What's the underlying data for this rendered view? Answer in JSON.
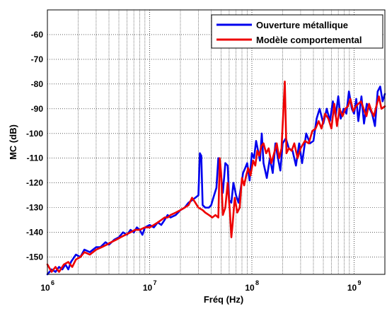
{
  "chart_data": {
    "type": "line",
    "title": "",
    "xlabel": "Fréq (Hz)",
    "ylabel": "MC (dB)",
    "xscale": "log",
    "xlim": [
      1000000,
      2000000000
    ],
    "ylim": [
      -157,
      -50
    ],
    "yticks": [
      -60,
      -70,
      -80,
      -90,
      -100,
      -110,
      -120,
      -130,
      -140,
      -150
    ],
    "xticks": [
      {
        "value": 1000000,
        "label": "10",
        "exp": "6"
      },
      {
        "value": 10000000,
        "label": "10",
        "exp": "7"
      },
      {
        "value": 100000000,
        "label": "10",
        "exp": "8"
      },
      {
        "value": 1000000000,
        "label": "10",
        "exp": "9"
      }
    ],
    "grid": true,
    "legend": "top-right",
    "series": [
      {
        "name": "Ouverture métallique",
        "color": "#0000ee",
        "points": [
          [
            1000000,
            -157
          ],
          [
            1100000,
            -155
          ],
          [
            1200000,
            -156
          ],
          [
            1300000,
            -154
          ],
          [
            1400000,
            -155
          ],
          [
            1500000,
            -153
          ],
          [
            1600000,
            -155
          ],
          [
            1700000,
            -152
          ],
          [
            1900000,
            -149
          ],
          [
            2100000,
            -150
          ],
          [
            2300000,
            -147
          ],
          [
            2600000,
            -148
          ],
          [
            3000000,
            -146
          ],
          [
            3300000,
            -146
          ],
          [
            3700000,
            -144
          ],
          [
            4000000,
            -145
          ],
          [
            4500000,
            -143
          ],
          [
            5000000,
            -142
          ],
          [
            5500000,
            -140
          ],
          [
            6000000,
            -141
          ],
          [
            6500000,
            -139
          ],
          [
            7000000,
            -140
          ],
          [
            7500000,
            -138
          ],
          [
            8000000,
            -139
          ],
          [
            8500000,
            -141
          ],
          [
            9000000,
            -138
          ],
          [
            10000000,
            -137
          ],
          [
            11000000,
            -138
          ],
          [
            12000000,
            -136
          ],
          [
            13000000,
            -137
          ],
          [
            14000000,
            -135
          ],
          [
            15000000,
            -133
          ],
          [
            16000000,
            -134
          ],
          [
            18000000,
            -133
          ],
          [
            20000000,
            -131
          ],
          [
            22000000,
            -130
          ],
          [
            24000000,
            -128
          ],
          [
            26000000,
            -127
          ],
          [
            28000000,
            -126
          ],
          [
            30000000,
            -125
          ],
          [
            31000000,
            -108
          ],
          [
            32000000,
            -109
          ],
          [
            33000000,
            -129
          ],
          [
            35000000,
            -130
          ],
          [
            38000000,
            -130
          ],
          [
            40000000,
            -129
          ],
          [
            42000000,
            -126
          ],
          [
            45000000,
            -122
          ],
          [
            47000000,
            -110
          ],
          [
            49000000,
            -114
          ],
          [
            52000000,
            -124
          ],
          [
            55000000,
            -112
          ],
          [
            58000000,
            -113
          ],
          [
            60000000,
            -127
          ],
          [
            63000000,
            -128
          ],
          [
            66000000,
            -120
          ],
          [
            70000000,
            -125
          ],
          [
            74000000,
            -128
          ],
          [
            78000000,
            -122
          ],
          [
            82000000,
            -116
          ],
          [
            86000000,
            -114
          ],
          [
            90000000,
            -112
          ],
          [
            95000000,
            -119
          ],
          [
            100000000,
            -108
          ],
          [
            105000000,
            -110
          ],
          [
            110000000,
            -103
          ],
          [
            115000000,
            -107
          ],
          [
            120000000,
            -111
          ],
          [
            125000000,
            -100
          ],
          [
            130000000,
            -112
          ],
          [
            140000000,
            -118
          ],
          [
            150000000,
            -110
          ],
          [
            160000000,
            -116
          ],
          [
            170000000,
            -104
          ],
          [
            180000000,
            -110
          ],
          [
            190000000,
            -115
          ],
          [
            200000000,
            -104
          ],
          [
            215000000,
            -102
          ],
          [
            230000000,
            -106
          ],
          [
            250000000,
            -107
          ],
          [
            270000000,
            -113
          ],
          [
            290000000,
            -104
          ],
          [
            310000000,
            -112
          ],
          [
            340000000,
            -100
          ],
          [
            370000000,
            -104
          ],
          [
            400000000,
            -103
          ],
          [
            430000000,
            -94
          ],
          [
            460000000,
            -90
          ],
          [
            500000000,
            -96
          ],
          [
            540000000,
            -90
          ],
          [
            580000000,
            -95
          ],
          [
            620000000,
            -87
          ],
          [
            660000000,
            -93
          ],
          [
            700000000,
            -85
          ],
          [
            740000000,
            -94
          ],
          [
            790000000,
            -90
          ],
          [
            840000000,
            -92
          ],
          [
            890000000,
            -83
          ],
          [
            950000000,
            -90
          ],
          [
            1000000000,
            -92
          ],
          [
            1050000000,
            -86
          ],
          [
            1100000000,
            -95
          ],
          [
            1180000000,
            -85
          ],
          [
            1250000000,
            -96
          ],
          [
            1330000000,
            -88
          ],
          [
            1420000000,
            -90
          ],
          [
            1500000000,
            -92
          ],
          [
            1600000000,
            -97
          ],
          [
            1700000000,
            -83
          ],
          [
            1800000000,
            -81
          ],
          [
            1900000000,
            -87
          ],
          [
            2000000000,
            -84
          ]
        ]
      },
      {
        "name": "Modèle comportemental",
        "color": "#ee0000",
        "points": [
          [
            1000000,
            -153
          ],
          [
            1100000,
            -156
          ],
          [
            1200000,
            -154
          ],
          [
            1300000,
            -156
          ],
          [
            1450000,
            -153
          ],
          [
            1600000,
            -152
          ],
          [
            1750000,
            -154
          ],
          [
            1900000,
            -151
          ],
          [
            2100000,
            -150
          ],
          [
            2300000,
            -148
          ],
          [
            2600000,
            -149
          ],
          [
            3000000,
            -147
          ],
          [
            3400000,
            -146
          ],
          [
            3800000,
            -145
          ],
          [
            4200000,
            -144
          ],
          [
            4700000,
            -143
          ],
          [
            5200000,
            -142
          ],
          [
            5800000,
            -141
          ],
          [
            6500000,
            -140
          ],
          [
            7200000,
            -139
          ],
          [
            8000000,
            -139
          ],
          [
            9000000,
            -138
          ],
          [
            10000000,
            -138
          ],
          [
            11000000,
            -137
          ],
          [
            12000000,
            -136
          ],
          [
            13000000,
            -135
          ],
          [
            14000000,
            -134
          ],
          [
            15000000,
            -134
          ],
          [
            16000000,
            -133
          ],
          [
            18000000,
            -132
          ],
          [
            20000000,
            -131
          ],
          [
            22000000,
            -130
          ],
          [
            24000000,
            -129
          ],
          [
            26000000,
            -126
          ],
          [
            28000000,
            -128
          ],
          [
            30000000,
            -130
          ],
          [
            33000000,
            -131
          ],
          [
            35000000,
            -132
          ],
          [
            38000000,
            -133
          ],
          [
            41000000,
            -134
          ],
          [
            44000000,
            -133
          ],
          [
            47000000,
            -134
          ],
          [
            48500000,
            -110
          ],
          [
            50000000,
            -116
          ],
          [
            52000000,
            -133
          ],
          [
            55000000,
            -130
          ],
          [
            58000000,
            -120
          ],
          [
            61000000,
            -132
          ],
          [
            63000000,
            -142
          ],
          [
            65000000,
            -136
          ],
          [
            68000000,
            -126
          ],
          [
            72000000,
            -132
          ],
          [
            76000000,
            -130
          ],
          [
            80000000,
            -118
          ],
          [
            84000000,
            -121
          ],
          [
            88000000,
            -117
          ],
          [
            92000000,
            -114
          ],
          [
            97000000,
            -117
          ],
          [
            103000000,
            -111
          ],
          [
            108000000,
            -113
          ],
          [
            113000000,
            -107
          ],
          [
            118000000,
            -109
          ],
          [
            124000000,
            -105
          ],
          [
            130000000,
            -104
          ],
          [
            138000000,
            -108
          ],
          [
            146000000,
            -106
          ],
          [
            155000000,
            -112
          ],
          [
            165000000,
            -108
          ],
          [
            175000000,
            -104
          ],
          [
            185000000,
            -110
          ],
          [
            195000000,
            -106
          ],
          [
            210000000,
            -79
          ],
          [
            218000000,
            -108
          ],
          [
            230000000,
            -106
          ],
          [
            245000000,
            -107
          ],
          [
            260000000,
            -104
          ],
          [
            280000000,
            -110
          ],
          [
            300000000,
            -106
          ],
          [
            330000000,
            -103
          ],
          [
            360000000,
            -104
          ],
          [
            390000000,
            -99
          ],
          [
            420000000,
            -98
          ],
          [
            450000000,
            -95
          ],
          [
            480000000,
            -98
          ],
          [
            520000000,
            -92
          ],
          [
            560000000,
            -94
          ],
          [
            600000000,
            -98
          ],
          [
            640000000,
            -88
          ],
          [
            680000000,
            -97
          ],
          [
            720000000,
            -90
          ],
          [
            770000000,
            -93
          ],
          [
            820000000,
            -90
          ],
          [
            870000000,
            -89
          ],
          [
            920000000,
            -86
          ],
          [
            980000000,
            -91
          ],
          [
            1040000000,
            -89
          ],
          [
            1100000000,
            -88
          ],
          [
            1170000000,
            -87
          ],
          [
            1240000000,
            -90
          ],
          [
            1320000000,
            -93
          ],
          [
            1400000000,
            -88
          ],
          [
            1480000000,
            -91
          ],
          [
            1560000000,
            -93
          ],
          [
            1650000000,
            -89
          ],
          [
            1750000000,
            -85
          ],
          [
            1850000000,
            -90
          ],
          [
            2000000000,
            -89
          ]
        ]
      }
    ]
  }
}
